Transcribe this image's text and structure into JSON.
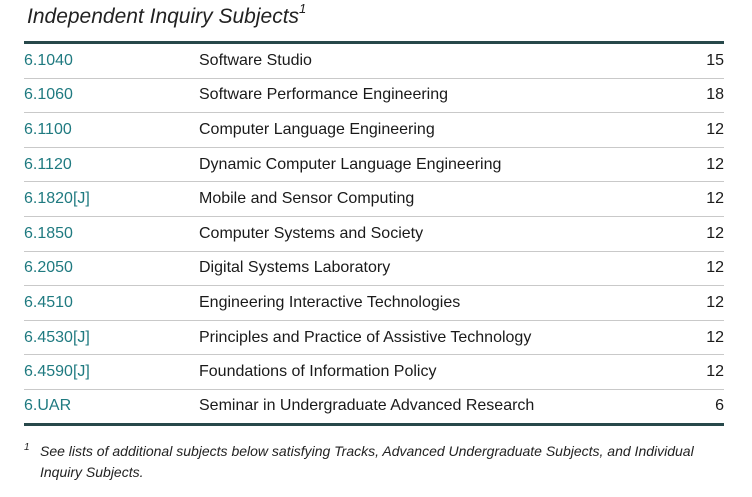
{
  "heading": {
    "title": "Independent Inquiry Subjects",
    "footnote_mark": "1"
  },
  "subjects": [
    {
      "number": "6.1040",
      "name": "Software Studio",
      "units": "15"
    },
    {
      "number": "6.1060",
      "name": "Software Performance Engineering",
      "units": "18"
    },
    {
      "number": "6.1100",
      "name": "Computer Language Engineering",
      "units": "12"
    },
    {
      "number": "6.1120",
      "name": "Dynamic Computer Language Engineering",
      "units": "12"
    },
    {
      "number": "6.1820[J]",
      "name": "Mobile and Sensor Computing",
      "units": "12"
    },
    {
      "number": "6.1850",
      "name": "Computer Systems and Society",
      "units": "12"
    },
    {
      "number": "6.2050",
      "name": "Digital Systems Laboratory",
      "units": "12"
    },
    {
      "number": "6.4510",
      "name": "Engineering Interactive Technologies",
      "units": "12"
    },
    {
      "number": "6.4530[J]",
      "name": "Principles and Practice of Assistive Technology",
      "units": "12"
    },
    {
      "number": "6.4590[J]",
      "name": "Foundations of Information Policy",
      "units": "12"
    },
    {
      "number": "6.UAR",
      "name": "Seminar in Undergraduate Advanced Research",
      "units": "6"
    }
  ],
  "footnote": {
    "mark": "1",
    "text": "See lists of additional subjects below satisfying Tracks, Advanced Undergraduate Subjects, and Individual Inquiry Subjects."
  },
  "colors": {
    "link": "#1f7a80",
    "rule": "#27484a",
    "divider": "#c9c9c9"
  }
}
